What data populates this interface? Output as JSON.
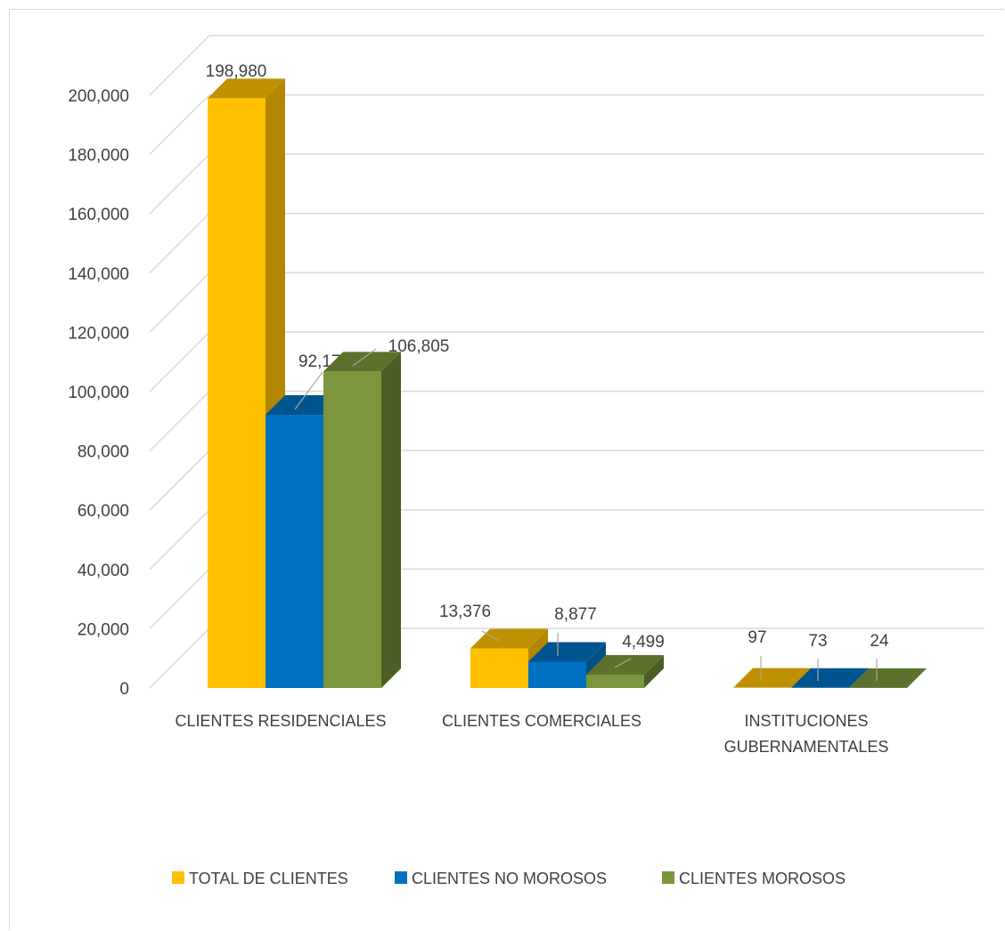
{
  "chart_data": {
    "type": "bar",
    "style": "3d-clustered-column",
    "categories": [
      [
        "CLIENTES RESIDENCIALES"
      ],
      [
        "CLIENTES COMERCIALES"
      ],
      [
        "INSTITUCIONES",
        "GUBERNAMENTALES"
      ]
    ],
    "series": [
      {
        "name": "TOTAL DE CLIENTES",
        "values": [
          198980,
          13376,
          97
        ],
        "labels": [
          "198,980",
          "13,376",
          "97"
        ],
        "color": "#ffc000",
        "top_color": "#bf9000",
        "side_color": "#b38600"
      },
      {
        "name": "CLIENTES NO MOROSOS",
        "values": [
          92175,
          8877,
          73
        ],
        "labels": [
          "92,175",
          "8,877",
          "73"
        ],
        "color": "#0070c0",
        "top_color": "#00548f",
        "side_color": "#004f87"
      },
      {
        "name": "CLIENTES MOROSOS",
        "values": [
          106805,
          4499,
          24
        ],
        "labels": [
          "106,805",
          "4,499",
          "24"
        ],
        "color": "#7b963c",
        "top_color": "#5c722c",
        "side_color": "#4c5e25"
      }
    ],
    "ylim": [
      0,
      200000
    ],
    "yticks": [
      0,
      20000,
      40000,
      60000,
      80000,
      100000,
      120000,
      140000,
      160000,
      180000,
      200000
    ],
    "ytick_labels": [
      "0",
      "20,000",
      "40,000",
      "60,000",
      "80,000",
      "100,000",
      "120,000",
      "140,000",
      "160,000",
      "180,000",
      "200,000"
    ],
    "grid": true,
    "legend_position": "bottom"
  }
}
